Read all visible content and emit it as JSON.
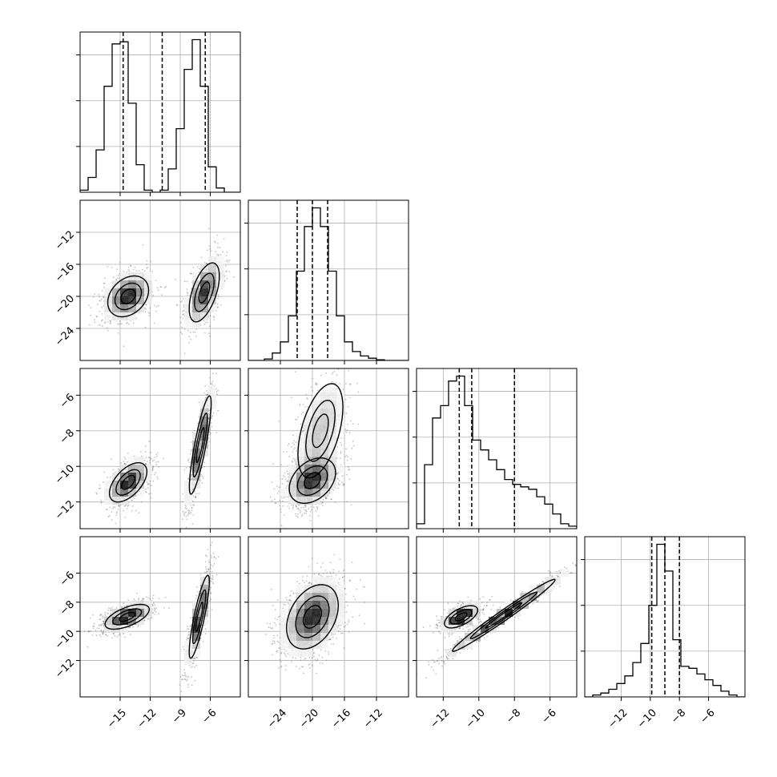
{
  "chart_data": {
    "type": "corner",
    "n_params": 4,
    "params": [
      {
        "range": [
          -19,
          -3
        ],
        "ticks": [
          -15,
          -12,
          -9,
          -6
        ],
        "tick_labels": [
          "−15",
          "−12",
          "−9",
          "−6"
        ],
        "quantiles": [
          -14.7,
          -10.8,
          -6.5
        ],
        "hist": [
          0.05,
          0.35,
          1.0,
          2.5,
          3.5,
          3.55,
          2.1,
          0.65,
          0.05,
          0.0,
          0.05,
          0.55,
          1.5,
          2.9,
          3.6,
          2.5,
          0.6,
          0.1,
          0.0,
          0.0
        ]
      },
      {
        "range": [
          -28,
          -8
        ],
        "ticks": [
          -24,
          -20,
          -16,
          -12
        ],
        "tick_labels": [
          "−24",
          "−20",
          "−16",
          "−12"
        ],
        "quantiles": [
          -21.9,
          -20.0,
          -18.1
        ],
        "hist": [
          0.0,
          0.0,
          0.02,
          0.1,
          0.25,
          0.6,
          1.2,
          1.8,
          2.05,
          1.8,
          1.2,
          0.6,
          0.25,
          0.12,
          0.06,
          0.03,
          0.01,
          0.0,
          0.0,
          0.0
        ]
      },
      {
        "range": [
          -13.5,
          -4.5
        ],
        "ticks": [
          -12,
          -10,
          -8,
          -6
        ],
        "tick_labels": [
          "−12",
          "−10",
          "−8",
          "−6"
        ],
        "quantiles": [
          -11.1,
          -10.4,
          -8.0
        ],
        "hist": [
          0.1,
          1.3,
          2.25,
          2.5,
          3.0,
          3.1,
          2.5,
          1.8,
          1.6,
          1.4,
          1.2,
          1.0,
          0.9,
          0.85,
          0.8,
          0.65,
          0.5,
          0.3,
          0.1,
          0.05
        ]
      },
      {
        "range": [
          -14.5,
          -3.5
        ],
        "ticks": [
          -12,
          -10,
          -8,
          -6
        ],
        "tick_labels": [
          "−12",
          "−10",
          "−8",
          "−6"
        ],
        "quantiles": [
          -9.9,
          -9.0,
          -8.0
        ],
        "hist": [
          0.0,
          0.05,
          0.1,
          0.2,
          0.35,
          0.55,
          0.9,
          1.4,
          2.4,
          4.0,
          3.3,
          1.5,
          0.8,
          0.75,
          0.6,
          0.45,
          0.3,
          0.15,
          0.05,
          0.0
        ]
      }
    ],
    "pairs": [
      {
        "row": 1,
        "col": 0,
        "modes": [
          {
            "cx": -14.2,
            "cy": -20.0,
            "sx": 1.2,
            "sy": 1.5,
            "rho": 0.3,
            "w": 1.0
          },
          {
            "cx": -6.6,
            "cy": -19.5,
            "sx": 0.9,
            "sy": 2.2,
            "rho": 0.55,
            "w": 0.9
          }
        ]
      },
      {
        "row": 2,
        "col": 0,
        "modes": [
          {
            "cx": -14.2,
            "cy": -10.9,
            "sx": 1.1,
            "sy": 0.65,
            "rho": 0.55,
            "w": 1.0
          },
          {
            "cx": -7.0,
            "cy": -8.8,
            "sx": 0.65,
            "sy": 1.65,
            "rho": 0.85,
            "w": 0.9
          }
        ]
      },
      {
        "row": 3,
        "col": 0,
        "modes": [
          {
            "cx": -14.3,
            "cy": -9.0,
            "sx": 1.3,
            "sy": 0.5,
            "rho": 0.6,
            "w": 1.0
          },
          {
            "cx": -7.1,
            "cy": -9.0,
            "sx": 0.6,
            "sy": 1.7,
            "rho": 0.85,
            "w": 0.9
          }
        ]
      },
      {
        "row": 2,
        "col": 1,
        "modes": [
          {
            "cx": -20.0,
            "cy": -10.8,
            "sx": 1.7,
            "sy": 0.75,
            "rho": 0.35,
            "w": 1.0
          },
          {
            "cx": -19.0,
            "cy": -8.0,
            "sx": 1.8,
            "sy": 1.7,
            "rho": 0.5,
            "w": 0.45
          }
        ]
      },
      {
        "row": 3,
        "col": 1,
        "modes": [
          {
            "cx": -20.0,
            "cy": -9.0,
            "sx": 1.9,
            "sy": 1.3,
            "rho": 0.35,
            "w": 1.0
          }
        ]
      },
      {
        "row": 3,
        "col": 2,
        "modes": [
          {
            "cx": -11.0,
            "cy": -9.0,
            "sx": 0.55,
            "sy": 0.45,
            "rho": 0.6,
            "w": 1.0
          },
          {
            "cx": -8.6,
            "cy": -8.9,
            "sx": 1.75,
            "sy": 1.5,
            "rho": 0.985,
            "w": 0.8
          }
        ]
      }
    ],
    "grid": true,
    "show_quantiles": true,
    "xlabel": "",
    "ylabel": ""
  }
}
